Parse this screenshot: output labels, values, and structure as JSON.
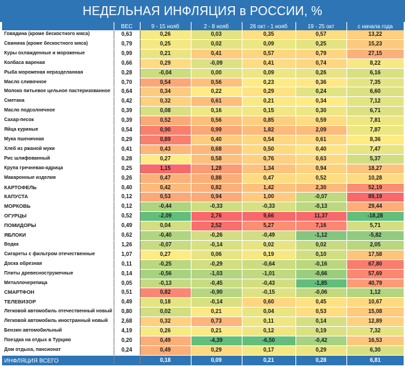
{
  "chart_data": {
    "type": "table",
    "title": "НЕДЕЛЬНАЯ ИНФЛЯЦИЯ в РОССИИ, %",
    "columns": [
      "",
      "ВЕС",
      "9 - 15 нояб",
      "2 - 8 нояб",
      "26 окт - 1 нояб",
      "19 - 25 окт",
      "с начала года"
    ],
    "rows": [
      {
        "name": "Говядина (кроме бескостного мяса)",
        "values": [
          "0,63",
          "0,26",
          "0,03",
          "0,35",
          "0,57",
          "13,22"
        ]
      },
      {
        "name": "Свинина (кроме бескостного мяса)",
        "values": [
          "0,79",
          "0,25",
          "0,02",
          "0,09",
          "0,25",
          "15,23"
        ]
      },
      {
        "name": "Куры охлажденные и мороженые",
        "values": [
          "0,99",
          "0,21",
          "0,41",
          "0,57",
          "0,79",
          "27,15"
        ]
      },
      {
        "name": "Колбаса вареная",
        "values": [
          "0,66",
          "0,29",
          "-0,09",
          "0,41",
          "0,74",
          "8,22"
        ]
      },
      {
        "name": "Рыба мороженая неразделанная",
        "values": [
          "0,28",
          "-0,04",
          "0,00",
          "0,09",
          "0,26",
          "6,16"
        ]
      },
      {
        "name": "Масло сливочное",
        "values": [
          "0,70",
          "0,54",
          "0,56",
          "0,23",
          "0,36",
          "7,35"
        ],
        "group_start": true
      },
      {
        "name": "Молоко питьевое цельное пастеризованное",
        "values": [
          "0,64",
          "0,34",
          "0,22",
          "0,29",
          "0,24",
          "6,60"
        ]
      },
      {
        "name": "Сметана",
        "values": [
          "0,42",
          "0,32",
          "0,61",
          "0,21",
          "0,34",
          "7,12"
        ]
      },
      {
        "name": "Масло подсолнечное",
        "values": [
          "0,39",
          "0,08",
          "0,16",
          "0,15",
          "0,30",
          "6,71"
        ],
        "group_start": true
      },
      {
        "name": "Сахар-песок",
        "values": [
          "0,39",
          "0,52",
          "0,56",
          "0,85",
          "0,59",
          "7,81"
        ]
      },
      {
        "name": "Яйца куриные",
        "values": [
          "0,54",
          "0,90",
          "0,99",
          "1,82",
          "2,09",
          "7,87"
        ],
        "group_start": true
      },
      {
        "name": "Мука пшеничная",
        "values": [
          "0,29",
          "0,89",
          "0,40",
          "0,54",
          "0,61",
          "8,36"
        ]
      },
      {
        "name": "Хлеб из ржаной муки",
        "values": [
          "0,41",
          "0,43",
          "0,68",
          "0,50",
          "0,40",
          "7,47"
        ]
      },
      {
        "name": "Рис шлифованный",
        "values": [
          "0,28",
          "0,27",
          "0,58",
          "0,76",
          "0,63",
          "5,37"
        ]
      },
      {
        "name": "Крупа гречневая-ядрица",
        "values": [
          "0,25",
          "1,15",
          "1,28",
          "1,34",
          "0,94",
          "18,27"
        ]
      },
      {
        "name": "Макаронные изделия",
        "values": [
          "0,26",
          "0,47",
          "0,88",
          "0,47",
          "0,52",
          "10,28"
        ]
      },
      {
        "name": "КАРТОФЕЛЬ",
        "values": [
          "0,40",
          "0,42",
          "0,82",
          "1,42",
          "2,30",
          "52,19"
        ],
        "group_start": true,
        "caps": true
      },
      {
        "name": "КАПУСТА",
        "values": [
          "0,12",
          "0,53",
          "0,94",
          "1,00",
          "-0,07",
          "89,19"
        ],
        "caps": true
      },
      {
        "name": "МОРКОВЬ",
        "values": [
          "0,12",
          "-0,44",
          "-0,33",
          "-0,33",
          "-0,13",
          "29,44"
        ],
        "caps": true
      },
      {
        "name": "ОГУРЦЫ",
        "values": [
          "0,52",
          "-2,09",
          "2,76",
          "9,66",
          "11,37",
          "-18,28"
        ],
        "caps": true
      },
      {
        "name": "ПОМИДОРЫ",
        "values": [
          "0,49",
          "0,04",
          "2,52",
          "5,27",
          "7,16",
          "5,71"
        ],
        "caps": true
      },
      {
        "name": "ЯБЛОКИ",
        "values": [
          "0,62",
          "-0,40",
          "-0,26",
          "-0,49",
          "-1,12",
          "-5,82"
        ],
        "caps": true
      },
      {
        "name": "Водка",
        "values": [
          "1,26",
          "-0,07",
          "-0,14",
          "0,02",
          "0,02",
          "2,05"
        ],
        "group_start": true
      },
      {
        "name": "Сигареты с фильтром отечественные",
        "values": [
          "1,07",
          "0,27",
          "0,06",
          "0,19",
          "0,10",
          "17,58"
        ]
      },
      {
        "name": "Доска обрезная",
        "values": [
          "0,11",
          "-0,25",
          "-0,29",
          "-0,64",
          "-0,16",
          "67,80"
        ],
        "group_start": true
      },
      {
        "name": "Плиты древесностружечные",
        "values": [
          "0,14",
          "-0,56",
          "-1,03",
          "-1,01",
          "-0,66",
          "57,69"
        ]
      },
      {
        "name": "Металлочерепица",
        "values": [
          "0,05",
          "-0,13",
          "-0,45",
          "-0,43",
          "-1,85",
          "40,79"
        ]
      },
      {
        "name": "СМАРТФОН",
        "values": [
          "0,51",
          "0,82",
          "-0,90",
          "-0,15",
          "-0,06",
          "1,12"
        ],
        "group_start": true,
        "caps": true
      },
      {
        "name": "ТЕЛЕВИЗОР",
        "values": [
          "0,49",
          "0,18",
          "-0,14",
          "0,60",
          "0,45",
          "10,67"
        ],
        "caps": true
      },
      {
        "name": "Легковой автомобиль отечественный новый",
        "values": [
          "0,80",
          "0,02",
          "0,21",
          "0,04",
          "0,53",
          "15,08"
        ],
        "group_start": true
      },
      {
        "name": "Легковой автомобиль иностранный новый",
        "values": [
          "2,68",
          "0,32",
          "0,73",
          "0,11",
          "0,14",
          "12,89"
        ]
      },
      {
        "name": "Бензин автомобильный",
        "values": [
          "4,19",
          "0,26",
          "0,21",
          "0,12",
          "0,19",
          "7,32"
        ]
      },
      {
        "name": "Поездка на отдых в Турцию",
        "values": [
          "0,20",
          "0,49",
          "-4,39",
          "-6,50",
          "-0,42",
          "16,53"
        ],
        "group_start": true
      },
      {
        "name": "Дом отдыха, пансионат",
        "values": [
          "0,24",
          "0,49",
          "0,29",
          "0,17",
          "0,29",
          "6,30"
        ]
      }
    ],
    "total": {
      "name": "ИНФЛЯЦИЯ ВСЕГО",
      "values": [
        "",
        "0,18",
        "0,09",
        "0,21",
        "0,28",
        "6,81"
      ]
    }
  },
  "colors": {
    "header": "#2e75b6",
    "high": "#f8696b",
    "mid": "#ffeb84",
    "low": "#63be7b"
  }
}
